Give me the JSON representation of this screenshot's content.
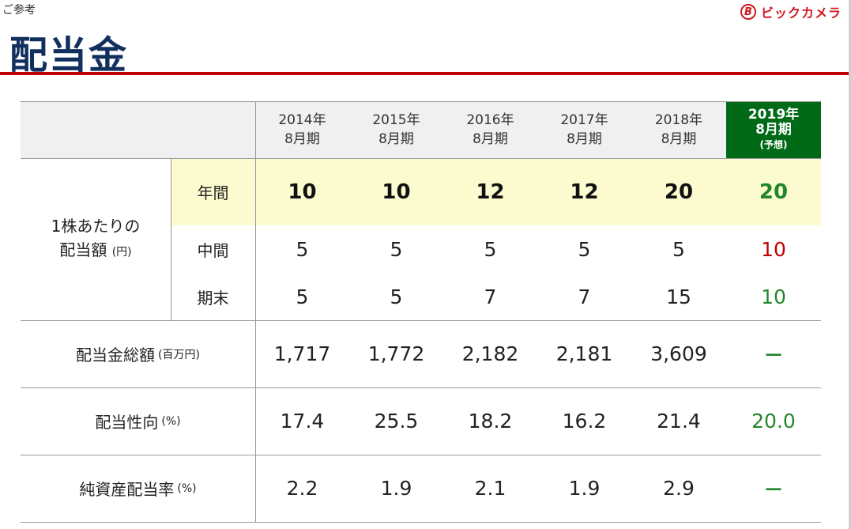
{
  "header": {
    "label": "ご参考",
    "title": "配当金",
    "logo_mark": "B",
    "logo_text": "ビックカメラ"
  },
  "table": {
    "years": [
      {
        "l1": "2014年",
        "l2": "8月期"
      },
      {
        "l1": "2015年",
        "l2": "8月期"
      },
      {
        "l1": "2016年",
        "l2": "8月期"
      },
      {
        "l1": "2017年",
        "l2": "8月期"
      },
      {
        "l1": "2018年",
        "l2": "8月期"
      }
    ],
    "forecast": {
      "l1": "2019年",
      "l2": "8月期",
      "l3": "(予想)"
    },
    "dps_label": {
      "l1": "1株あたりの",
      "l2": "配当額",
      "unit": "(円)"
    },
    "sub_labels": {
      "annual": "年間",
      "interim": "中間",
      "yearend": "期末"
    },
    "annual": [
      "10",
      "10",
      "12",
      "12",
      "20",
      "20"
    ],
    "interim": [
      "5",
      "5",
      "5",
      "5",
      "5",
      "10"
    ],
    "yearend": [
      "5",
      "5",
      "7",
      "7",
      "15",
      "10"
    ],
    "total_label": {
      "text": "配当金総額",
      "unit": "(百万円)"
    },
    "total": [
      "1,717",
      "1,772",
      "2,182",
      "2,181",
      "3,609",
      "－"
    ],
    "payout_label": {
      "text": "配当性向",
      "unit": "(%)"
    },
    "payout": [
      "17.4",
      "25.5",
      "18.2",
      "16.2",
      "21.4",
      "20.0"
    ],
    "doe_label": {
      "text": "純資産配当率",
      "unit": "(%)"
    },
    "doe": [
      "2.2",
      "1.9",
      "2.1",
      "1.9",
      "2.9",
      "－"
    ]
  },
  "colors": {
    "title": "#12305e",
    "rule": "#c00000",
    "forecast_header": "#006a17",
    "forecast_value": "#22862a",
    "highlight": "#fcfbd0"
  }
}
